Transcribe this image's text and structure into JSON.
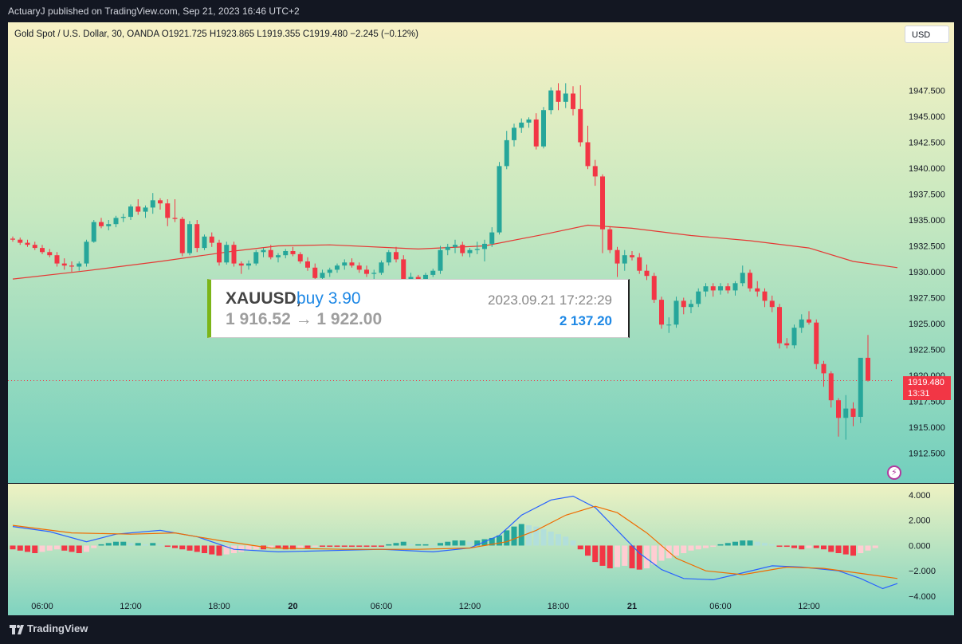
{
  "header": {
    "publisher_line": "ActuaryJ published on TradingView.com, Sep 21, 2023 16:46 UTC+2"
  },
  "legend": {
    "text": "Gold Spot / U.S. Dollar, 30, OANDA  O1921.725  H1923.865  L1919.355  C1919.480  −2.245 (−0.12%)"
  },
  "currency_button": "USD",
  "last_price": {
    "value": "1919.480",
    "countdown": "13:31"
  },
  "trade_box": {
    "symbol": "XAUUSD,",
    "action": "buy 3.90",
    "datetime": "2023.09.21 17:22:29",
    "price_range": "1 916.52 → 1 922.00",
    "profit": "2 137.20"
  },
  "footer": {
    "brand": "TradingView"
  },
  "colors": {
    "up": "#26a69a",
    "down": "#f23645",
    "ma": "#e53935",
    "macd": "#2962ff",
    "signal": "#ef6c00",
    "hist_up_strong": "#26a69a",
    "hist_up_weak": "#b2dfdb",
    "hist_dn_strong": "#f23645",
    "hist_dn_weak": "#ffcdd2"
  },
  "chart_data": [
    {
      "type": "candlestick",
      "title": "Gold Spot / U.S. Dollar, 30, OANDA",
      "ylim": [
        1911.0,
        1951.0
      ],
      "y_ticks": [
        "1947.500",
        "1945.000",
        "1942.500",
        "1940.000",
        "1937.500",
        "1935.000",
        "1932.500",
        "1930.000",
        "1927.500",
        "1925.000",
        "1922.500",
        "1920.000",
        "1917.500",
        "1915.000",
        "1912.500"
      ],
      "x_ticks": [
        {
          "label": "06:00",
          "i": 4
        },
        {
          "label": "12:00",
          "i": 16
        },
        {
          "label": "18:00",
          "i": 28
        },
        {
          "label": "20",
          "i": 38,
          "bold": true
        },
        {
          "label": "06:00",
          "i": 50
        },
        {
          "label": "12:00",
          "i": 62
        },
        {
          "label": "18:00",
          "i": 74
        },
        {
          "label": "21",
          "i": 84,
          "bold": true
        },
        {
          "label": "06:00",
          "i": 96
        },
        {
          "label": "12:00",
          "i": 108
        }
      ],
      "candles": [
        [
          1933.2,
          1933.4,
          1932.9,
          1933.1
        ],
        [
          1933.1,
          1933.3,
          1932.6,
          1932.8
        ],
        [
          1932.8,
          1933.1,
          1932.4,
          1932.6
        ],
        [
          1932.6,
          1932.9,
          1932.1,
          1932.3
        ],
        [
          1932.3,
          1932.6,
          1931.7,
          1931.9
        ],
        [
          1931.9,
          1932.2,
          1931.4,
          1931.6
        ],
        [
          1931.6,
          1931.9,
          1930.5,
          1930.8
        ],
        [
          1930.8,
          1931.3,
          1930.2,
          1930.6
        ],
        [
          1930.6,
          1931.0,
          1930.0,
          1930.5
        ],
        [
          1930.5,
          1931.0,
          1930.1,
          1930.8
        ],
        [
          1930.8,
          1933.1,
          1930.5,
          1932.9
        ],
        [
          1932.9,
          1935.0,
          1932.8,
          1934.8
        ],
        [
          1934.8,
          1935.2,
          1934.2,
          1934.4
        ],
        [
          1934.4,
          1935.0,
          1934.0,
          1934.6
        ],
        [
          1934.6,
          1935.4,
          1934.3,
          1935.2
        ],
        [
          1935.2,
          1935.6,
          1934.8,
          1935.3
        ],
        [
          1935.3,
          1936.5,
          1935.0,
          1936.3
        ],
        [
          1936.3,
          1937.0,
          1935.5,
          1935.8
        ],
        [
          1935.8,
          1936.4,
          1935.2,
          1936.2
        ],
        [
          1936.2,
          1937.6,
          1935.6,
          1936.9
        ],
        [
          1936.9,
          1937.1,
          1936.0,
          1936.6
        ],
        [
          1936.6,
          1937.0,
          1934.4,
          1935.2
        ],
        [
          1935.2,
          1937.0,
          1934.8,
          1935.1
        ],
        [
          1935.1,
          1935.3,
          1931.5,
          1931.8
        ],
        [
          1931.8,
          1934.9,
          1931.6,
          1934.6
        ],
        [
          1934.6,
          1935.0,
          1931.9,
          1932.3
        ],
        [
          1932.3,
          1933.6,
          1932.1,
          1933.4
        ],
        [
          1933.4,
          1933.8,
          1932.4,
          1932.8
        ],
        [
          1932.8,
          1933.1,
          1930.6,
          1930.9
        ],
        [
          1930.9,
          1932.9,
          1930.7,
          1932.6
        ],
        [
          1932.6,
          1932.9,
          1930.5,
          1930.8
        ],
        [
          1930.8,
          1931.0,
          1929.8,
          1930.6
        ],
        [
          1930.6,
          1931.1,
          1930.2,
          1930.8
        ],
        [
          1930.8,
          1932.1,
          1930.6,
          1931.9
        ],
        [
          1931.9,
          1932.3,
          1931.4,
          1932.1
        ],
        [
          1932.1,
          1932.6,
          1931.2,
          1931.4
        ],
        [
          1931.4,
          1931.8,
          1930.9,
          1931.6
        ],
        [
          1931.6,
          1932.2,
          1931.3,
          1932.0
        ],
        [
          1932.0,
          1932.4,
          1931.5,
          1931.7
        ],
        [
          1931.7,
          1931.9,
          1930.8,
          1931.0
        ],
        [
          1931.0,
          1931.4,
          1930.1,
          1930.4
        ],
        [
          1930.4,
          1930.8,
          1928.4,
          1929.4
        ],
        [
          1929.4,
          1930.2,
          1929.1,
          1929.9
        ],
        [
          1929.9,
          1930.4,
          1929.5,
          1930.2
        ],
        [
          1930.2,
          1930.8,
          1929.9,
          1930.6
        ],
        [
          1930.6,
          1931.2,
          1930.2,
          1930.9
        ],
        [
          1930.9,
          1931.3,
          1930.4,
          1930.6
        ],
        [
          1930.6,
          1930.9,
          1929.9,
          1930.2
        ],
        [
          1930.2,
          1930.6,
          1929.5,
          1929.8
        ],
        [
          1929.8,
          1930.2,
          1929.1,
          1929.9
        ],
        [
          1929.9,
          1931.1,
          1929.7,
          1930.9
        ],
        [
          1930.9,
          1932.1,
          1930.6,
          1931.9
        ],
        [
          1931.9,
          1932.4,
          1930.9,
          1931.2
        ],
        [
          1931.2,
          1931.6,
          1928.4,
          1929.0
        ],
        [
          1929.0,
          1929.9,
          1928.7,
          1929.5
        ],
        [
          1929.5,
          1929.7,
          1928.8,
          1929.1
        ],
        [
          1929.1,
          1929.9,
          1928.9,
          1929.7
        ],
        [
          1929.7,
          1930.3,
          1929.5,
          1930.1
        ],
        [
          1930.1,
          1932.5,
          1929.8,
          1932.1
        ],
        [
          1932.1,
          1932.7,
          1931.6,
          1932.4
        ],
        [
          1932.4,
          1933.1,
          1931.8,
          1932.6
        ],
        [
          1932.6,
          1932.9,
          1931.5,
          1931.8
        ],
        [
          1931.8,
          1932.3,
          1931.4,
          1932.1
        ],
        [
          1932.1,
          1932.9,
          1931.7,
          1932.2
        ],
        [
          1932.2,
          1933.1,
          1931.0,
          1932.7
        ],
        [
          1932.7,
          1934.3,
          1932.4,
          1933.8
        ],
        [
          1933.8,
          1940.6,
          1933.6,
          1940.2
        ],
        [
          1940.2,
          1943.6,
          1939.9,
          1942.7
        ],
        [
          1942.7,
          1944.3,
          1942.1,
          1943.9
        ],
        [
          1943.9,
          1944.8,
          1943.4,
          1944.4
        ],
        [
          1944.4,
          1944.9,
          1943.9,
          1944.7
        ],
        [
          1944.7,
          1945.3,
          1941.8,
          1942.1
        ],
        [
          1942.1,
          1945.9,
          1941.9,
          1945.6
        ],
        [
          1945.6,
          1947.8,
          1945.2,
          1947.5
        ],
        [
          1947.5,
          1948.2,
          1945.6,
          1946.4
        ],
        [
          1946.4,
          1948.2,
          1945.8,
          1947.2
        ],
        [
          1947.2,
          1947.9,
          1945.1,
          1945.7
        ],
        [
          1945.7,
          1948.0,
          1942.1,
          1942.5
        ],
        [
          1942.5,
          1944.1,
          1939.9,
          1940.2
        ],
        [
          1940.2,
          1940.8,
          1938.3,
          1939.2
        ],
        [
          1939.2,
          1939.4,
          1931.8,
          1934.1
        ],
        [
          1934.1,
          1934.4,
          1931.8,
          1932.1
        ],
        [
          1932.1,
          1932.4,
          1929.5,
          1930.8
        ],
        [
          1930.8,
          1932.1,
          1930.1,
          1931.6
        ],
        [
          1931.6,
          1932.0,
          1931.1,
          1931.4
        ],
        [
          1931.4,
          1931.8,
          1929.8,
          1930.1
        ],
        [
          1930.1,
          1930.7,
          1929.2,
          1929.6
        ],
        [
          1929.6,
          1929.9,
          1927.0,
          1927.3
        ],
        [
          1927.3,
          1927.6,
          1924.5,
          1924.9
        ],
        [
          1924.9,
          1925.6,
          1924.1,
          1924.9
        ],
        [
          1924.9,
          1927.6,
          1924.6,
          1927.2
        ],
        [
          1927.2,
          1927.5,
          1925.9,
          1926.6
        ],
        [
          1926.6,
          1927.3,
          1926.0,
          1926.9
        ],
        [
          1926.9,
          1928.4,
          1926.6,
          1928.1
        ],
        [
          1928.1,
          1928.9,
          1927.6,
          1928.6
        ],
        [
          1928.6,
          1928.9,
          1927.6,
          1928.2
        ],
        [
          1928.2,
          1928.9,
          1927.8,
          1928.6
        ],
        [
          1928.6,
          1928.9,
          1927.9,
          1928.2
        ],
        [
          1928.2,
          1929.1,
          1927.7,
          1928.9
        ],
        [
          1928.9,
          1930.6,
          1928.6,
          1929.9
        ],
        [
          1929.9,
          1930.2,
          1928.1,
          1928.4
        ],
        [
          1928.4,
          1929.1,
          1927.6,
          1928.1
        ],
        [
          1928.1,
          1928.4,
          1926.6,
          1927.2
        ],
        [
          1927.2,
          1927.7,
          1926.1,
          1926.6
        ],
        [
          1926.6,
          1926.9,
          1922.6,
          1923.1
        ],
        [
          1923.1,
          1923.6,
          1922.6,
          1922.9
        ],
        [
          1922.9,
          1924.9,
          1922.6,
          1924.6
        ],
        [
          1924.6,
          1925.9,
          1924.1,
          1925.4
        ],
        [
          1925.4,
          1926.2,
          1924.9,
          1925.1
        ],
        [
          1925.1,
          1925.4,
          1920.6,
          1921.1
        ],
        [
          1921.1,
          1921.4,
          1918.9,
          1920.2
        ],
        [
          1920.2,
          1920.4,
          1916.9,
          1917.6
        ],
        [
          1917.6,
          1917.8,
          1914.1,
          1915.9
        ],
        [
          1915.9,
          1918.1,
          1913.8,
          1916.8
        ],
        [
          1916.8,
          1917.4,
          1915.1,
          1916.0
        ],
        [
          1916.0,
          1921.4,
          1915.4,
          1921.7
        ],
        [
          1921.7,
          1923.9,
          1919.4,
          1919.5
        ]
      ],
      "moving_average": [
        {
          "i": 0,
          "v": 1929.3
        },
        {
          "i": 10,
          "v": 1930.1
        },
        {
          "i": 20,
          "v": 1931.0
        },
        {
          "i": 30,
          "v": 1932.0
        },
        {
          "i": 36,
          "v": 1932.5
        },
        {
          "i": 43,
          "v": 1932.6
        },
        {
          "i": 55,
          "v": 1932.2
        },
        {
          "i": 64,
          "v": 1932.5
        },
        {
          "i": 72,
          "v": 1933.6
        },
        {
          "i": 78,
          "v": 1934.5
        },
        {
          "i": 84,
          "v": 1934.2
        },
        {
          "i": 92,
          "v": 1933.5
        },
        {
          "i": 100,
          "v": 1933.0
        },
        {
          "i": 108,
          "v": 1932.3
        },
        {
          "i": 114,
          "v": 1931.0
        },
        {
          "i": 120,
          "v": 1930.4
        }
      ]
    },
    {
      "type": "macd",
      "ylim": [
        -4.0,
        4.5
      ],
      "y_ticks": [
        "4.000",
        "2.000",
        "0.000",
        "−2.000",
        "−4.000"
      ],
      "macd_line": [
        {
          "i": 0,
          "v": 1.5
        },
        {
          "i": 5,
          "v": 1.1
        },
        {
          "i": 10,
          "v": 0.3
        },
        {
          "i": 14,
          "v": 0.9
        },
        {
          "i": 20,
          "v": 1.2
        },
        {
          "i": 25,
          "v": 0.7
        },
        {
          "i": 30,
          "v": -0.3
        },
        {
          "i": 36,
          "v": -0.5
        },
        {
          "i": 43,
          "v": -0.4
        },
        {
          "i": 50,
          "v": -0.3
        },
        {
          "i": 57,
          "v": -0.5
        },
        {
          "i": 62,
          "v": -0.2
        },
        {
          "i": 66,
          "v": 0.8
        },
        {
          "i": 69,
          "v": 2.4
        },
        {
          "i": 73,
          "v": 3.6
        },
        {
          "i": 76,
          "v": 3.9
        },
        {
          "i": 79,
          "v": 3.0
        },
        {
          "i": 82,
          "v": 1.2
        },
        {
          "i": 85,
          "v": -0.6
        },
        {
          "i": 88,
          "v": -1.9
        },
        {
          "i": 91,
          "v": -2.6
        },
        {
          "i": 95,
          "v": -2.7
        },
        {
          "i": 98,
          "v": -2.3
        },
        {
          "i": 103,
          "v": -1.6
        },
        {
          "i": 107,
          "v": -1.7
        },
        {
          "i": 112,
          "v": -2.0
        },
        {
          "i": 115,
          "v": -2.6
        },
        {
          "i": 118,
          "v": -3.4
        },
        {
          "i": 120,
          "v": -3.0
        }
      ],
      "signal_line": [
        {
          "i": 0,
          "v": 1.6
        },
        {
          "i": 8,
          "v": 1.0
        },
        {
          "i": 16,
          "v": 0.9
        },
        {
          "i": 22,
          "v": 1.0
        },
        {
          "i": 28,
          "v": 0.4
        },
        {
          "i": 35,
          "v": -0.2
        },
        {
          "i": 45,
          "v": -0.3
        },
        {
          "i": 55,
          "v": -0.3
        },
        {
          "i": 62,
          "v": -0.2
        },
        {
          "i": 67,
          "v": 0.3
        },
        {
          "i": 71,
          "v": 1.2
        },
        {
          "i": 75,
          "v": 2.4
        },
        {
          "i": 79,
          "v": 3.1
        },
        {
          "i": 82,
          "v": 2.6
        },
        {
          "i": 86,
          "v": 1.0
        },
        {
          "i": 90,
          "v": -1.0
        },
        {
          "i": 94,
          "v": -2.0
        },
        {
          "i": 99,
          "v": -2.3
        },
        {
          "i": 105,
          "v": -1.7
        },
        {
          "i": 110,
          "v": -1.8
        },
        {
          "i": 115,
          "v": -2.2
        },
        {
          "i": 120,
          "v": -2.6
        }
      ],
      "histogram": [
        -0.3,
        -0.4,
        -0.5,
        -0.6,
        -0.5,
        -0.4,
        -0.3,
        -0.4,
        -0.5,
        -0.6,
        -0.5,
        -0.2,
        0.1,
        0.2,
        0.3,
        0.3,
        0.2,
        0.2,
        0.1,
        0.2,
        0.1,
        -0.1,
        -0.2,
        -0.3,
        -0.4,
        -0.5,
        -0.6,
        -0.7,
        -0.8,
        -0.7,
        -0.6,
        -0.5,
        -0.4,
        -0.3,
        -0.3,
        -0.2,
        -0.2,
        -0.3,
        -0.3,
        -0.2,
        -0.2,
        -0.1,
        -0.1,
        -0.1,
        -0.1,
        -0.1,
        -0.1,
        -0.1,
        -0.1,
        -0.1,
        -0.1,
        0.1,
        0.2,
        0.3,
        0.1,
        0.1,
        0.1,
        0.0,
        0.2,
        0.3,
        0.4,
        0.4,
        0.3,
        0.4,
        0.5,
        0.6,
        0.8,
        1.2,
        1.5,
        1.7,
        1.6,
        1.5,
        1.3,
        1.1,
        0.9,
        0.7,
        0.4,
        -0.3,
        -0.8,
        -1.3,
        -1.6,
        -1.8,
        -1.7,
        -1.6,
        -1.8,
        -1.9,
        -1.8,
        -1.5,
        -1.2,
        -1.0,
        -0.8,
        -0.6,
        -0.4,
        -0.3,
        -0.2,
        -0.1,
        0.1,
        0.2,
        0.3,
        0.4,
        0.4,
        0.3,
        0.2,
        0.1,
        -0.1,
        -0.1,
        -0.2,
        -0.3,
        -0.2,
        -0.2,
        -0.3,
        -0.5,
        -0.6,
        -0.7,
        -0.8,
        -0.6,
        -0.4,
        -0.2
      ]
    }
  ]
}
